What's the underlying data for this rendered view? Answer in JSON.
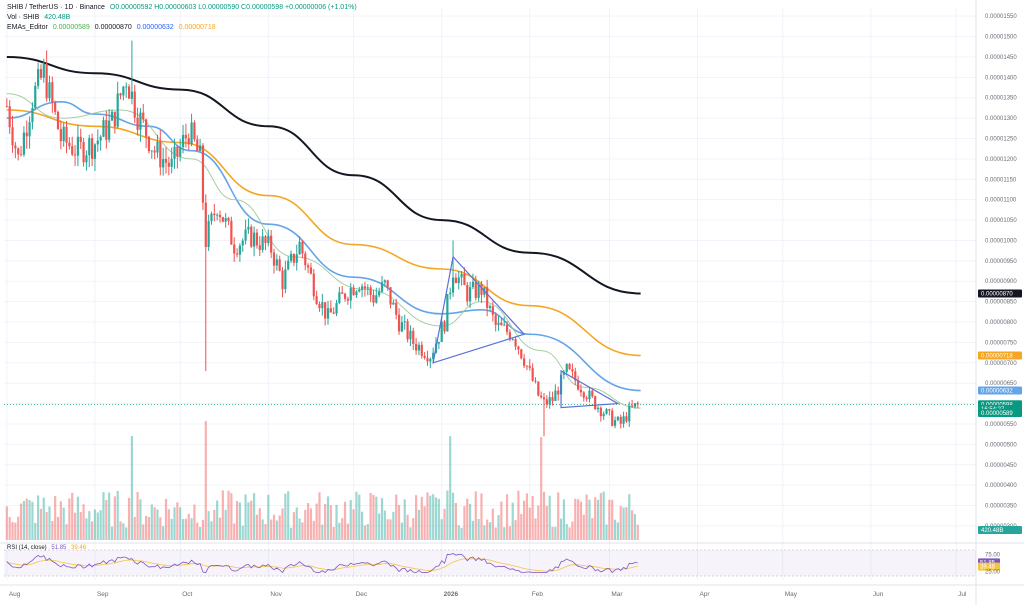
{
  "header": {
    "symbol_line": "SHIB / TetherUS · 1D · Binance",
    "ohlc": "O0.00000592 H0.00000603 L0.00000590 C0.00000598 +0.00000006 (+1.01%)",
    "vol_label": "Vol · SHIB",
    "vol_value": "420.48B",
    "emas_label": "EMAs_Editor",
    "ema1_value": "0.00000589",
    "ema2_value": "0.00000870",
    "ema3_value": "0.00000632",
    "ema4_value": "0.00000718"
  },
  "rsi": {
    "label": "RSI (14, close)",
    "value1": "51.85",
    "value2": "39.46",
    "levels": [
      "75.00",
      "25.00"
    ]
  },
  "colors": {
    "up": "#26a69a",
    "down": "#ef5350",
    "ema_black": "#131722",
    "ema_orange": "#f5a623",
    "ema_blue": "#64a4e8",
    "ema_green": "#9fc89a",
    "pattern": "#5b6fd6",
    "rsi_line": "#7e57c2",
    "rsi_ma": "#f5c542",
    "last_price": "#089981"
  },
  "price_axis": {
    "ticks": [
      "0.00001550",
      "0.00001500",
      "0.00001450",
      "0.00001400",
      "0.00001350",
      "0.00001300",
      "0.00001250",
      "0.00001200",
      "0.00001150",
      "0.00001100",
      "0.00001050",
      "0.00001000",
      "0.00000950",
      "0.00000900",
      "0.00000850",
      "0.00000800",
      "0.00000750",
      "0.00000700",
      "0.00000650",
      "0.00000600",
      "0.00000550",
      "0.00000500",
      "0.00000450",
      "0.00000400",
      "0.00000350",
      "0.00000300"
    ],
    "badges": [
      {
        "text": "0.00000870",
        "color": "#131722",
        "value": 8.7e-06
      },
      {
        "text": "0.00000718",
        "color": "#f5a623",
        "value": 7.18e-06
      },
      {
        "text": "0.00000632",
        "color": "#64a4e8",
        "value": 6.32e-06
      },
      {
        "text": "SHIBUSDT",
        "color": "#089981",
        "value": 5.98e-06
      },
      {
        "text": "0.00000598",
        "color": "#089981",
        "value": 5.98e-06
      },
      {
        "text": "16:54:27",
        "color": "#089981",
        "value": 5.87e-06
      },
      {
        "text": "0.00000589",
        "color": "#089981",
        "value": 5.77e-06
      },
      {
        "text": "420.48B",
        "color": "#26a69a",
        "value": 2.9e-06
      }
    ]
  },
  "time_axis": [
    "Aug",
    "Sep",
    "Oct",
    "Nov",
    "Dec",
    "2026",
    "Feb",
    "Mar",
    "Apr",
    "May",
    "Jun",
    "Jul"
  ],
  "chart_data": {
    "type": "candlestick",
    "x_range": [
      "2025-08-01",
      "2026-07-01"
    ],
    "y_range": [
      2.9e-06,
      1.57e-05
    ],
    "ohlc_anchors": [
      {
        "date": "2025-08-01",
        "close": 1.33e-05
      },
      {
        "date": "2025-08-05",
        "close": 1.2e-05
      },
      {
        "date": "2025-08-10",
        "close": 1.35e-05
      },
      {
        "date": "2025-08-14",
        "close": 1.41e-05
      },
      {
        "date": "2025-08-20",
        "close": 1.25e-05
      },
      {
        "date": "2025-08-26",
        "close": 1.22e-05
      },
      {
        "date": "2025-09-01",
        "close": 1.24e-05
      },
      {
        "date": "2025-09-07",
        "close": 1.29e-05
      },
      {
        "date": "2025-09-12",
        "close": 1.4e-05
      },
      {
        "date": "2025-09-16",
        "close": 1.31e-05
      },
      {
        "date": "2025-09-22",
        "close": 1.22e-05
      },
      {
        "date": "2025-09-28",
        "close": 1.18e-05
      },
      {
        "date": "2025-10-04",
        "close": 1.27e-05
      },
      {
        "date": "2025-10-08",
        "close": 1.2e-05
      },
      {
        "date": "2025-10-10",
        "close": 1e-05
      },
      {
        "date": "2025-10-14",
        "close": 1.09e-05
      },
      {
        "date": "2025-10-20",
        "close": 9.9e-06
      },
      {
        "date": "2025-10-26",
        "close": 1.01e-05
      },
      {
        "date": "2025-11-02",
        "close": 9.8e-06
      },
      {
        "date": "2025-11-06",
        "close": 9e-06
      },
      {
        "date": "2025-11-12",
        "close": 9.9e-06
      },
      {
        "date": "2025-11-18",
        "close": 8.7e-06
      },
      {
        "date": "2025-11-22",
        "close": 8.1e-06
      },
      {
        "date": "2025-11-28",
        "close": 8.7e-06
      },
      {
        "date": "2025-12-03",
        "close": 9e-06
      },
      {
        "date": "2025-12-08",
        "close": 8.6e-06
      },
      {
        "date": "2025-12-12",
        "close": 8.9e-06
      },
      {
        "date": "2025-12-17",
        "close": 8e-06
      },
      {
        "date": "2025-12-22",
        "close": 7.5e-06
      },
      {
        "date": "2025-12-28",
        "close": 7.2e-06
      },
      {
        "date": "2026-01-02",
        "close": 8e-06
      },
      {
        "date": "2026-01-05",
        "close": 9.3e-06
      },
      {
        "date": "2026-01-10",
        "close": 8.7e-06
      },
      {
        "date": "2026-01-15",
        "close": 8.8e-06
      },
      {
        "date": "2026-01-20",
        "close": 7.9e-06
      },
      {
        "date": "2026-01-26",
        "close": 7.7e-06
      },
      {
        "date": "2026-01-30",
        "close": 7.1e-06
      },
      {
        "date": "2026-02-04",
        "close": 6.2e-06
      },
      {
        "date": "2026-02-06",
        "close": 6e-06
      },
      {
        "date": "2026-02-09",
        "close": 6.1e-06
      },
      {
        "date": "2026-02-14",
        "close": 6.8e-06
      },
      {
        "date": "2026-02-18",
        "close": 6.5e-06
      },
      {
        "date": "2026-02-24",
        "close": 6e-06
      },
      {
        "date": "2026-03-02",
        "close": 5.6e-06
      },
      {
        "date": "2026-03-05",
        "close": 5.5e-06
      },
      {
        "date": "2026-03-08",
        "close": 5.8e-06
      },
      {
        "date": "2026-03-11",
        "close": 5.98e-06
      }
    ],
    "ema_series": [
      {
        "name": "0.00000870",
        "color": "#131722",
        "points": [
          [
            "2025-08-01",
            1.45e-05
          ],
          [
            "2025-09-01",
            1.41e-05
          ],
          [
            "2025-10-01",
            1.37e-05
          ],
          [
            "2025-11-01",
            1.28e-05
          ],
          [
            "2025-12-01",
            1.16e-05
          ],
          [
            "2026-01-01",
            1.05e-05
          ],
          [
            "2026-02-01",
            9.7e-06
          ],
          [
            "2026-03-12",
            8.7e-06
          ]
        ]
      },
      {
        "name": "0.00000718",
        "color": "#f5a623",
        "points": [
          [
            "2025-08-01",
            1.32e-05
          ],
          [
            "2025-09-01",
            1.28e-05
          ],
          [
            "2025-10-01",
            1.24e-05
          ],
          [
            "2025-11-01",
            1.11e-05
          ],
          [
            "2025-12-01",
            9.9e-06
          ],
          [
            "2026-01-01",
            9.3e-06
          ],
          [
            "2026-02-01",
            8.4e-06
          ],
          [
            "2026-03-12",
            7.18e-06
          ]
        ]
      },
      {
        "name": "0.00000632",
        "color": "#64a4e8",
        "points": [
          [
            "2025-08-01",
            1.3e-05
          ],
          [
            "2025-08-20",
            1.34e-05
          ],
          [
            "2025-09-01",
            1.31e-05
          ],
          [
            "2025-09-20",
            1.28e-05
          ],
          [
            "2025-10-05",
            1.22e-05
          ],
          [
            "2025-11-01",
            1.04e-05
          ],
          [
            "2025-12-01",
            9.1e-06
          ],
          [
            "2026-01-01",
            8.2e-06
          ],
          [
            "2026-01-15",
            8.3e-06
          ],
          [
            "2026-02-01",
            7.7e-06
          ],
          [
            "2026-03-12",
            6.32e-06
          ]
        ]
      },
      {
        "name": "0.00000589",
        "color": "#9fc89a",
        "points": [
          [
            "2025-08-01",
            1.36e-05
          ],
          [
            "2025-08-20",
            1.3e-05
          ],
          [
            "2025-09-10",
            1.32e-05
          ],
          [
            "2025-10-05",
            1.2e-05
          ],
          [
            "2025-10-20",
            1.1e-05
          ],
          [
            "2025-11-10",
            9.6e-06
          ],
          [
            "2025-12-05",
            8.8e-06
          ],
          [
            "2026-01-01",
            7.9e-06
          ],
          [
            "2026-01-15",
            8.5e-06
          ],
          [
            "2026-02-05",
            7.3e-06
          ],
          [
            "2026-02-20",
            6.4e-06
          ],
          [
            "2026-03-12",
            5.89e-06
          ]
        ]
      }
    ],
    "patterns": [
      {
        "name": "triangle-1",
        "points": [
          [
            "2026-01-05",
            9.6e-06
          ],
          [
            "2026-01-30",
            7.7e-06
          ],
          [
            "2025-12-29",
            7e-06
          ]
        ]
      },
      {
        "name": "triangle-2",
        "points": [
          [
            "2026-02-12",
            6.8e-06
          ],
          [
            "2026-03-04",
            6e-06
          ],
          [
            "2026-02-12",
            5.9e-06
          ]
        ]
      }
    ],
    "volume_peak_dates": [
      "2025-10-10",
      "2026-01-04",
      "2026-02-05",
      "2025-09-14"
    ]
  }
}
